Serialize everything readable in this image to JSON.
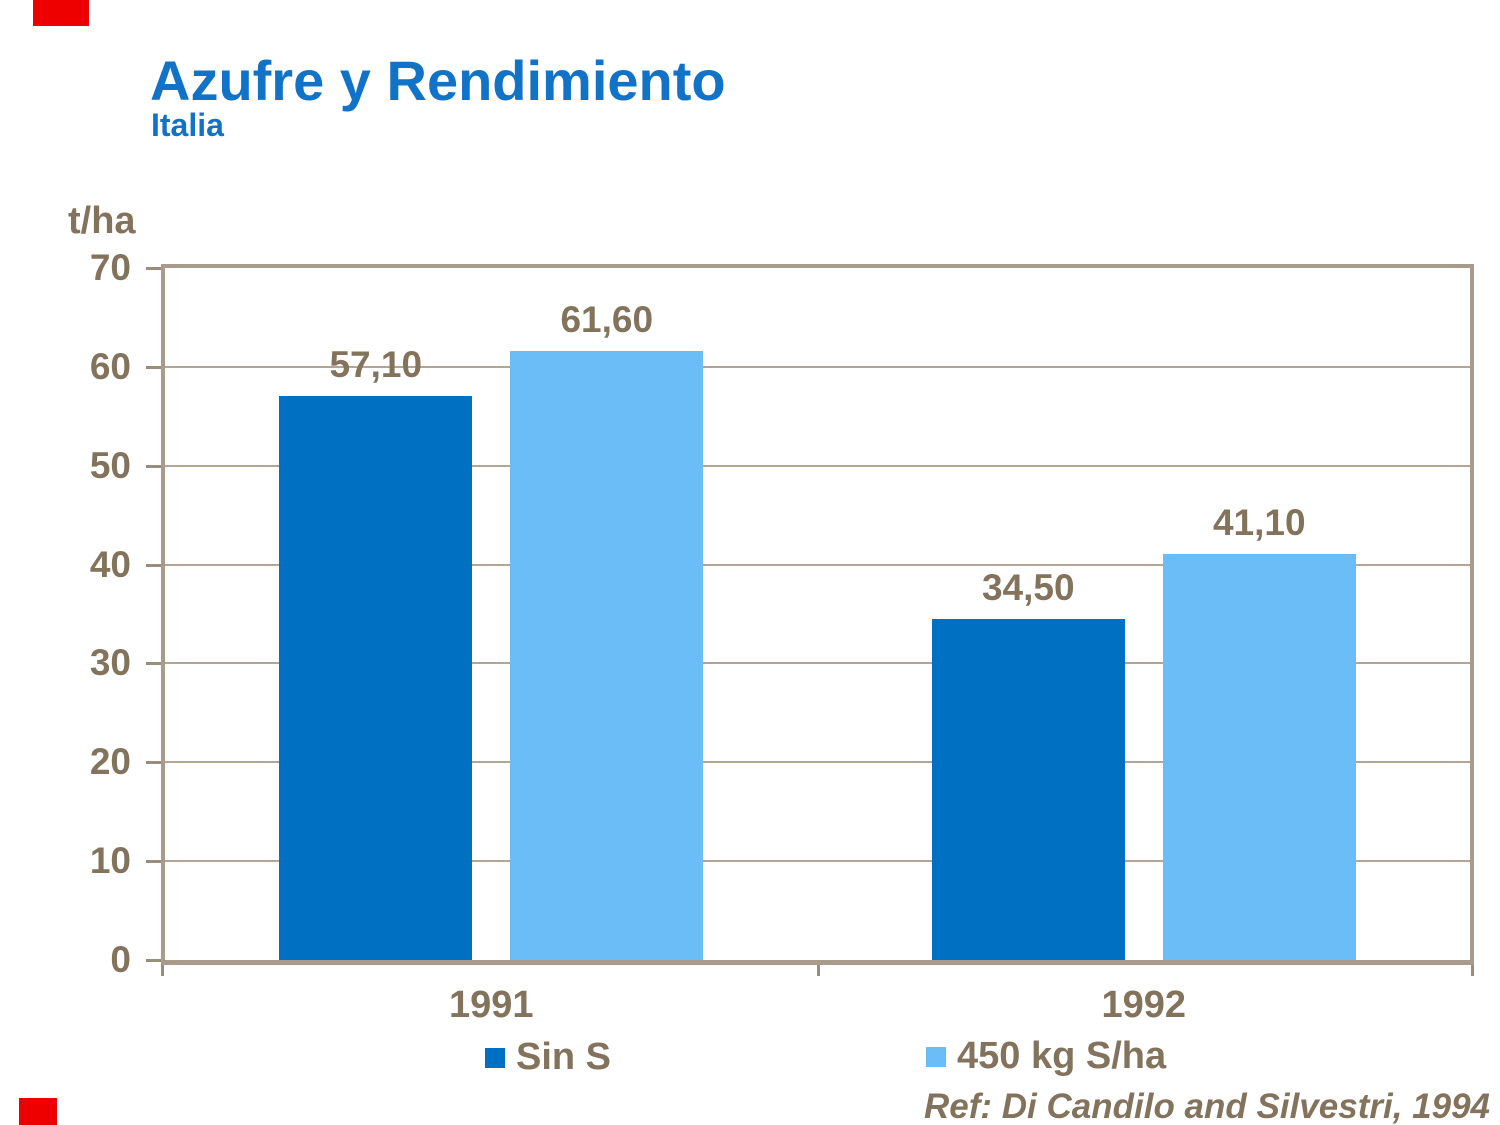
{
  "slide": {
    "title": "Azufre y Rendimiento",
    "subtitle": "Italia",
    "reference": "Ref: Di Candilo and Silvestri, 1994"
  },
  "colors": {
    "title_blue": "#1173c8",
    "series1_blue": "#0071c2",
    "series2_blue": "#6bbdf8",
    "text_brown": "#84735c",
    "gridline": "#b2a595",
    "frame": "#a89b8c",
    "tick": "#9a8d7e",
    "accent_red": "#ef0000",
    "background": "#ffffff"
  },
  "chart_data": {
    "type": "bar",
    "title": "Azufre y Rendimiento",
    "subtitle": "Italia",
    "xlabel": "",
    "ylabel": "t/ha",
    "categories": [
      "1991",
      "1992"
    ],
    "series": [
      {
        "name": "Sin S",
        "color": "#0071c2",
        "values": [
          57.1,
          34.5
        ],
        "data_labels": [
          "57,10",
          "34,50"
        ]
      },
      {
        "name": "450 kg S/ha",
        "color": "#6bbdf8",
        "values": [
          61.6,
          41.1
        ],
        "data_labels": [
          "61,60",
          "41,10"
        ]
      }
    ],
    "ylim": [
      0,
      70
    ],
    "ytick_step": 10,
    "grid": true,
    "legend_position": "bottom",
    "annotation": "Ref: Di Candilo and Silvestri, 1994"
  },
  "legend": {
    "items": [
      {
        "label": "Sin S",
        "color": "#0071c2"
      },
      {
        "label": "450 kg S/ha",
        "color": "#6bbdf8"
      }
    ]
  }
}
